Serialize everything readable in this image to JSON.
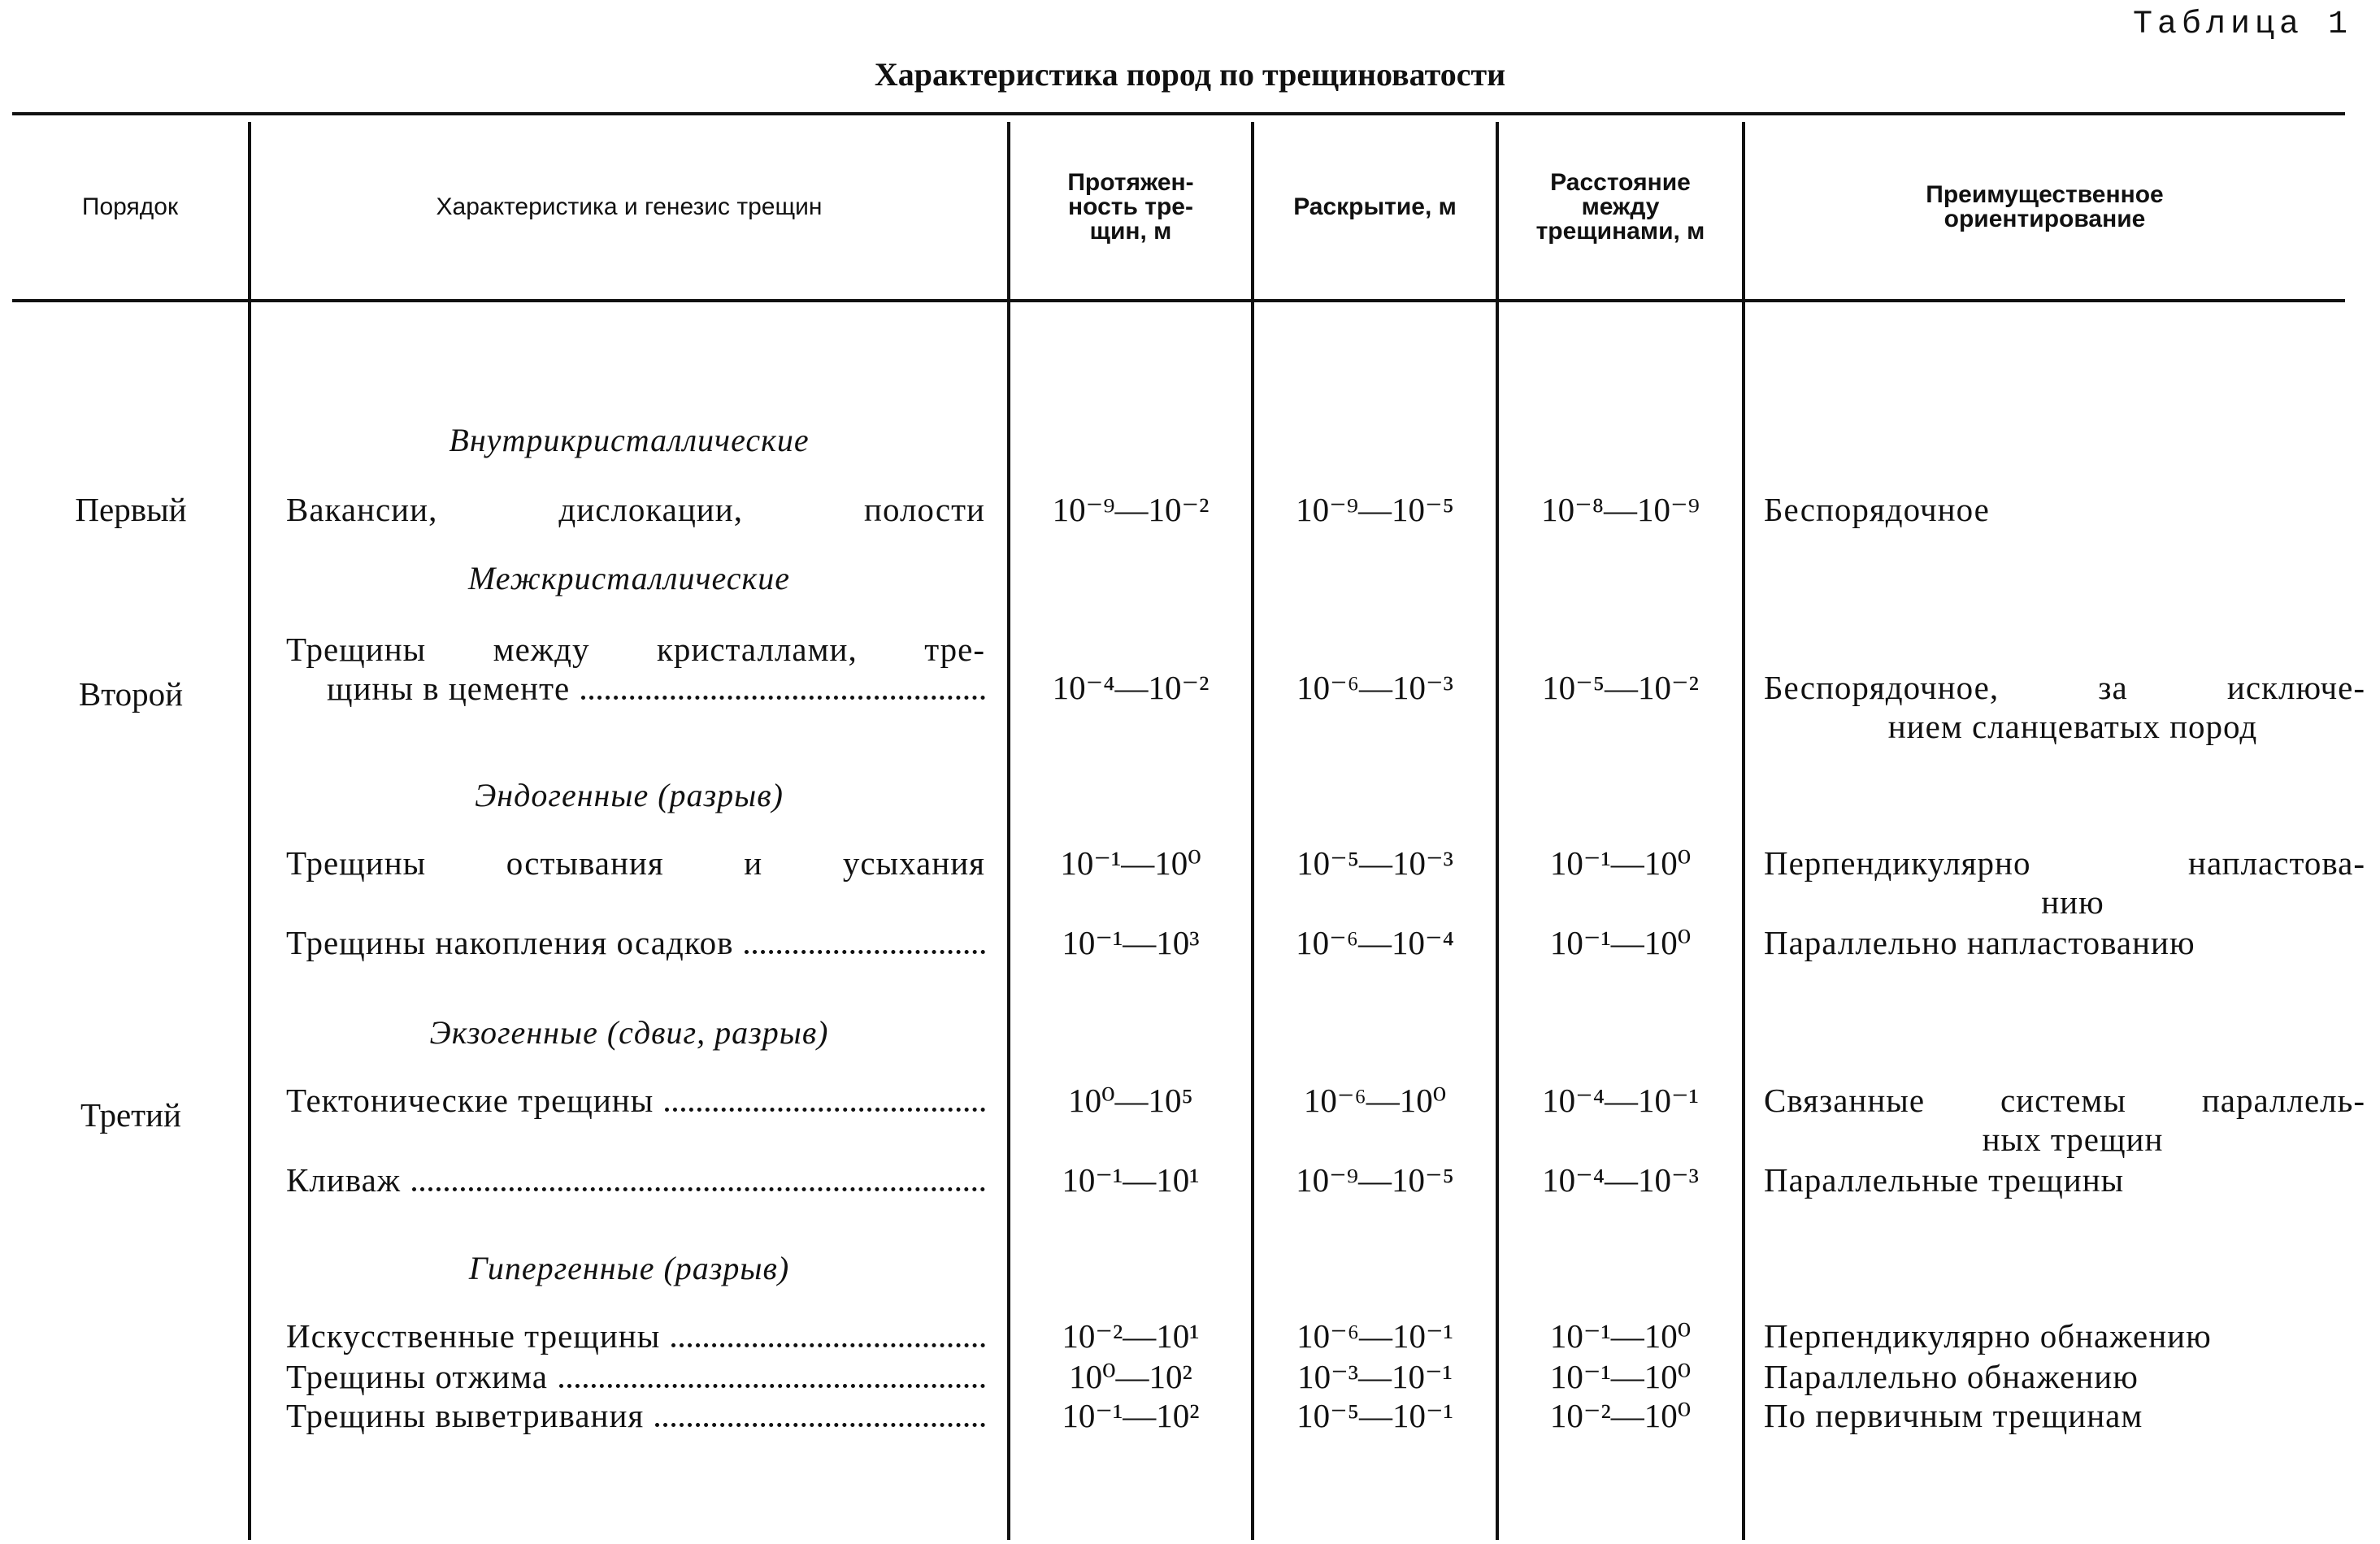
{
  "table_label": "Таблица 1",
  "title": "Характеристика пород по трещиноватости",
  "headers": {
    "order": "Порядок",
    "genesis": "Характеристика и генезис трещин",
    "length": "Протяжен-ность тре-щин, м",
    "opening": "Раскрытие, м",
    "spacing": "Расстояние между трещинами, м",
    "orientation": "Преимущественное ориентирование"
  },
  "orders": [
    "Первый",
    "Второй",
    "Третий"
  ],
  "sections": [
    "Внутрикристаллические",
    "Межкристаллические",
    "Эндогенные (разрыв)",
    "Экзогенные (сдвиг, разрыв)",
    "Гипергенные (разрыв)"
  ],
  "rows": [
    {
      "name": "Вакансии, дислокации, полости",
      "name2": "",
      "length": "10⁻⁹—10⁻²",
      "opening": "10⁻⁹—10⁻⁵",
      "spacing": "10⁻⁸—10⁻⁹",
      "orientation": "Беспорядочное",
      "orientation2": ""
    },
    {
      "name": "Трещины между кристаллами, тре-",
      "name2": "щины в цементе",
      "length": "10⁻⁴—10⁻²",
      "opening": "10⁻⁶—10⁻³",
      "spacing": "10⁻⁵—10⁻²",
      "orientation": "Беспорядочное, за исключе-",
      "orientation2": "нием сланцеватых пород"
    },
    {
      "name": "Трещины остывания и усыхания",
      "name2": "",
      "length": "10⁻¹—10⁰",
      "opening": "10⁻⁵—10⁻³",
      "spacing": "10⁻¹—10⁰",
      "orientation": "Перпендикулярно напластова-",
      "orientation2": "нию"
    },
    {
      "name": "Трещины накопления осадков",
      "name2": "",
      "length": "10⁻¹—10³",
      "opening": "10⁻⁶—10⁻⁴",
      "spacing": "10⁻¹—10⁰",
      "orientation": "Параллельно напластованию",
      "orientation2": ""
    },
    {
      "name": "Тектонические трещины",
      "name2": "",
      "length": "10⁰—10⁵",
      "opening": "10⁻⁶—10⁰",
      "spacing": "10⁻⁴—10⁻¹",
      "orientation": "Связанные системы параллель-",
      "orientation2": "ных трещин"
    },
    {
      "name": "Кливаж",
      "name2": "",
      "length": "10⁻¹—10¹",
      "opening": "10⁻⁹—10⁻⁵",
      "spacing": "10⁻⁴—10⁻³",
      "orientation": "Параллельные трещины",
      "orientation2": ""
    },
    {
      "name": "Искусственные трещины",
      "name2": "",
      "length": "10⁻²—10¹",
      "opening": "10⁻⁶—10⁻¹",
      "spacing": "10⁻¹—10⁰",
      "orientation": "Перпендикулярно обнажению",
      "orientation2": ""
    },
    {
      "name": "Трещины отжима",
      "name2": "",
      "length": "10⁰—10²",
      "opening": "10⁻³—10⁻¹",
      "spacing": "10⁻¹—10⁰",
      "orientation": "Параллельно обнажению",
      "orientation2": ""
    },
    {
      "name": "Трещины выветривания",
      "name2": "",
      "length": "10⁻¹—10²",
      "opening": "10⁻⁵—10⁻¹",
      "spacing": "10⁻²—10⁰",
      "orientation": "По первичным трещинам",
      "orientation2": ""
    }
  ]
}
